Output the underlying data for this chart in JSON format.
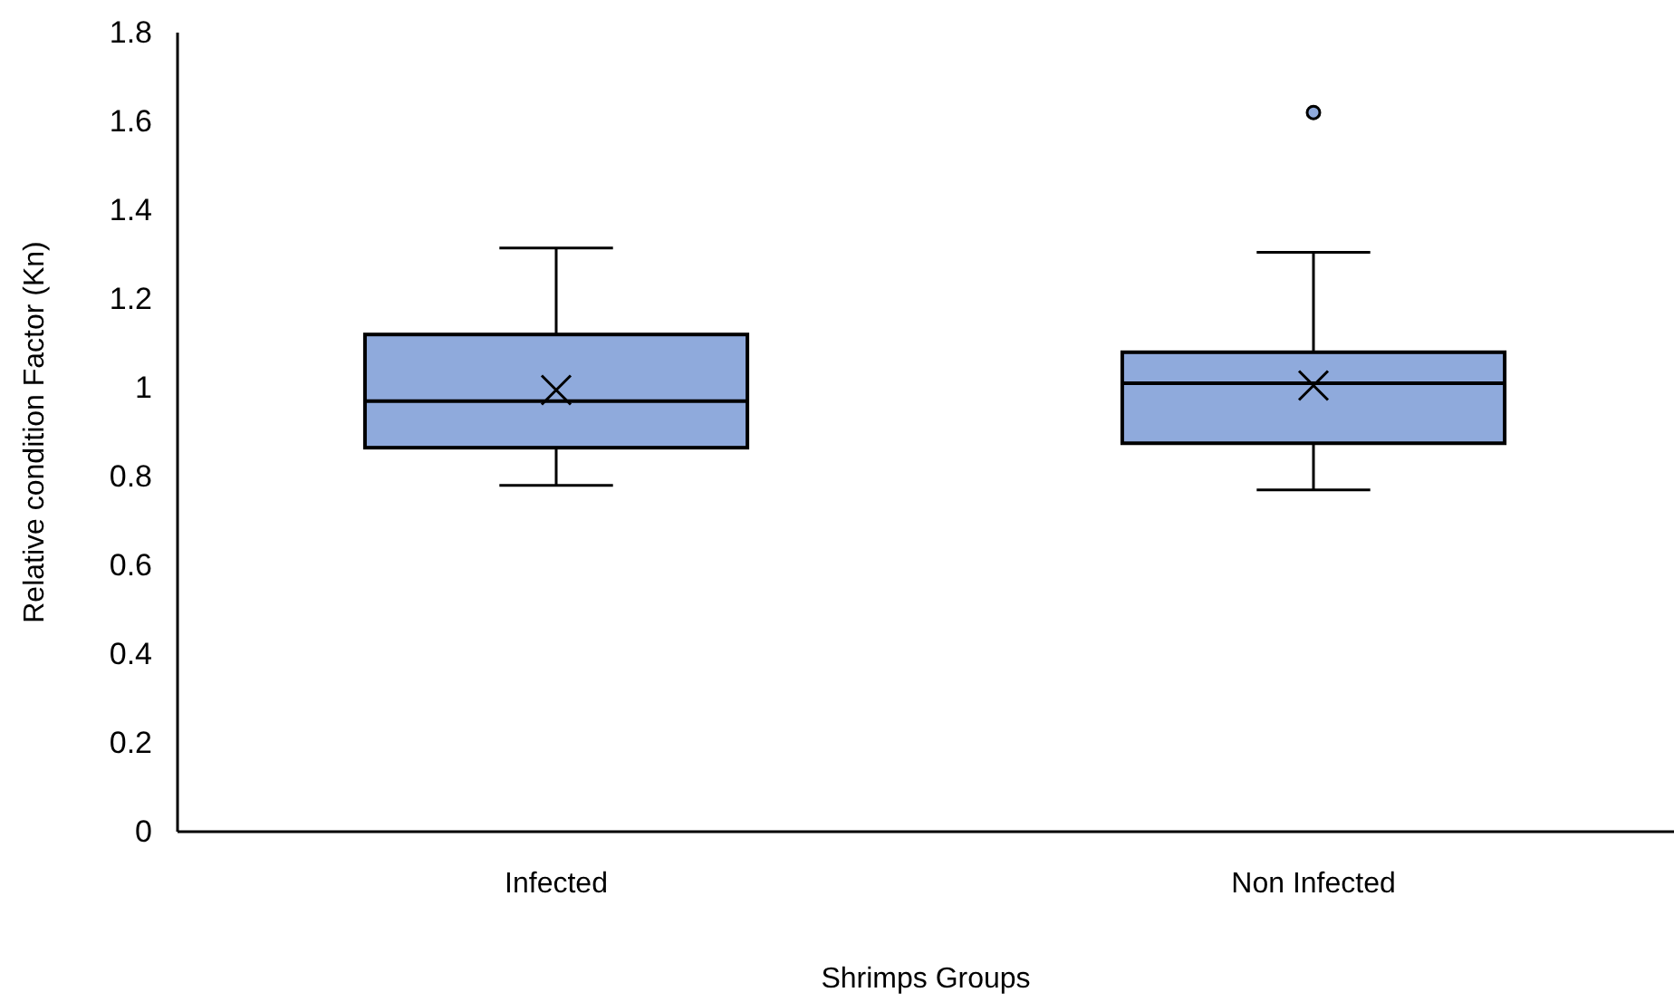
{
  "chart_data": {
    "type": "box",
    "xlabel": "Shrimps Groups",
    "ylabel": "Relative condition Factor (Kn)",
    "categories": [
      "Infected",
      "Non Infected"
    ],
    "boxes": [
      {
        "low": 0.78,
        "q1": 0.865,
        "median": 0.97,
        "q3": 1.12,
        "high": 1.315,
        "mean": 0.995
      },
      {
        "low": 0.77,
        "q1": 0.875,
        "median": 1.01,
        "q3": 1.08,
        "high": 1.305,
        "mean": 1.005,
        "outliers": [
          1.62
        ]
      }
    ],
    "color": "#8faadc",
    "ylim": [
      0,
      1.8
    ],
    "yticks": [
      0,
      0.2,
      0.4,
      0.6,
      0.8,
      1,
      1.2,
      1.4,
      1.6,
      1.8
    ],
    "grid": false
  }
}
